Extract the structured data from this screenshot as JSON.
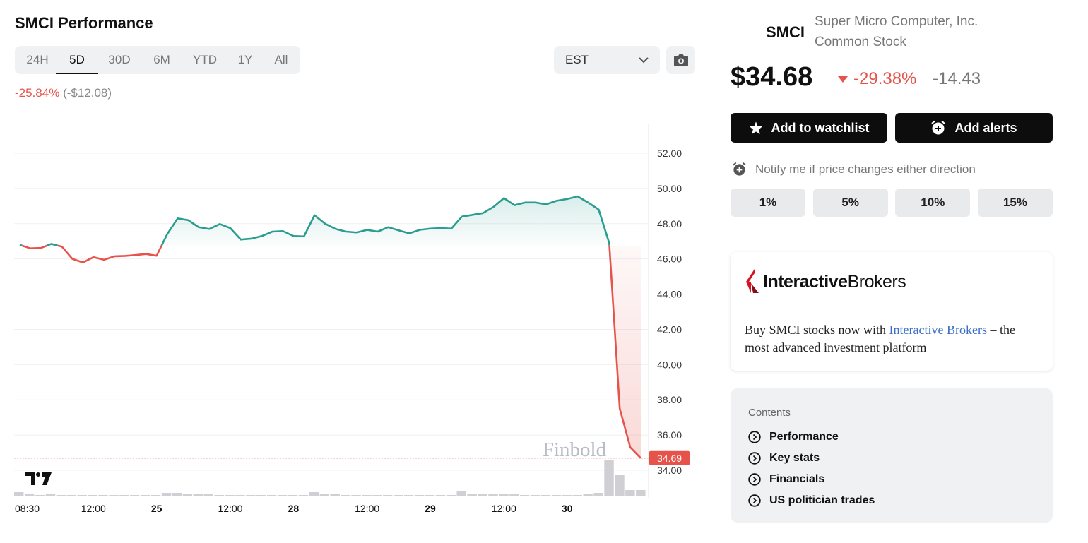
{
  "header": {
    "title": "SMCI Performance",
    "ranges": [
      "24H",
      "5D",
      "30D",
      "6M",
      "YTD",
      "1Y",
      "All"
    ],
    "active_range": "5D",
    "timezone": "EST",
    "perf_pct": "-25.84%",
    "perf_abs": "(-$12.08)"
  },
  "stock": {
    "ticker": "SMCI",
    "company_line1": "Super Micro Computer, Inc.",
    "company_line2": "Common Stock",
    "price": "$34.68",
    "change_pct": "-29.38%",
    "change_abs": "-14.43"
  },
  "actions": {
    "watchlist_label": "Add to watchlist",
    "alerts_label": "Add alerts",
    "notify_text": "Notify me if price changes either direction",
    "thresholds": [
      "1%",
      "5%",
      "10%",
      "15%"
    ]
  },
  "ad": {
    "brand_bold": "Interactive",
    "brand_regular": "Brokers",
    "text_before": "Buy SMCI stocks now with ",
    "link_text": "Interactive Brokers",
    "text_after": " – the most advanced investment platform"
  },
  "contents": {
    "heading": "Contents",
    "items": [
      "Performance",
      "Key stats",
      "Financials",
      "US politician trades"
    ]
  },
  "colors": {
    "up": "#2a9d8f",
    "down": "#e5534b",
    "volume": "#cfcfd4"
  },
  "chart_data": {
    "type": "line",
    "watermark": "Finbold",
    "ylim": [
      33.0,
      53.0
    ],
    "y_ticks": [
      "52.00",
      "50.00",
      "48.00",
      "46.00",
      "44.00",
      "42.00",
      "40.00",
      "38.00",
      "36.00",
      "34.00"
    ],
    "x_ticks": [
      {
        "label": "08:30",
        "bold": false,
        "i": 0
      },
      {
        "label": "12:00",
        "bold": false,
        "i": 7
      },
      {
        "label": "25",
        "bold": true,
        "i": 13
      },
      {
        "label": "12:00",
        "bold": false,
        "i": 20
      },
      {
        "label": "28",
        "bold": true,
        "i": 26
      },
      {
        "label": "12:00",
        "bold": false,
        "i": 33
      },
      {
        "label": "29",
        "bold": true,
        "i": 39
      },
      {
        "label": "12:00",
        "bold": false,
        "i": 46
      },
      {
        "label": "30",
        "bold": true,
        "i": 52
      }
    ],
    "baseline": 46.76,
    "last_label": "34.69",
    "last_value": 34.69,
    "values": [
      46.8,
      46.6,
      46.62,
      46.85,
      46.7,
      46.0,
      45.8,
      46.1,
      45.95,
      46.15,
      46.17,
      46.22,
      46.28,
      46.18,
      47.4,
      48.3,
      48.2,
      47.8,
      47.7,
      47.98,
      47.75,
      47.1,
      47.15,
      47.3,
      47.55,
      47.58,
      47.3,
      47.28,
      48.48,
      48.0,
      47.7,
      47.55,
      47.5,
      47.65,
      47.55,
      47.8,
      47.62,
      47.45,
      47.65,
      47.72,
      47.75,
      47.72,
      48.4,
      48.5,
      48.6,
      48.95,
      49.45,
      49.05,
      49.2,
      49.2,
      49.1,
      49.3,
      49.4,
      49.55,
      49.2,
      48.8,
      46.9,
      37.5,
      35.3,
      34.69
    ],
    "volume": [
      3,
      2,
      1,
      1.5,
      1,
      1,
      1,
      1,
      1,
      1,
      1,
      1,
      1,
      1,
      2.5,
      2.5,
      2,
      1.5,
      1.5,
      1,
      1,
      1,
      1,
      1,
      1,
      1,
      1,
      1,
      3,
      2,
      1.5,
      1,
      1,
      1,
      1,
      1,
      1,
      1,
      1,
      1,
      1,
      1,
      3.5,
      2,
      2,
      2,
      2,
      2,
      1,
      1,
      1,
      1,
      1,
      1,
      1.5,
      2.5,
      26,
      15,
      4.5,
      4.5
    ]
  }
}
